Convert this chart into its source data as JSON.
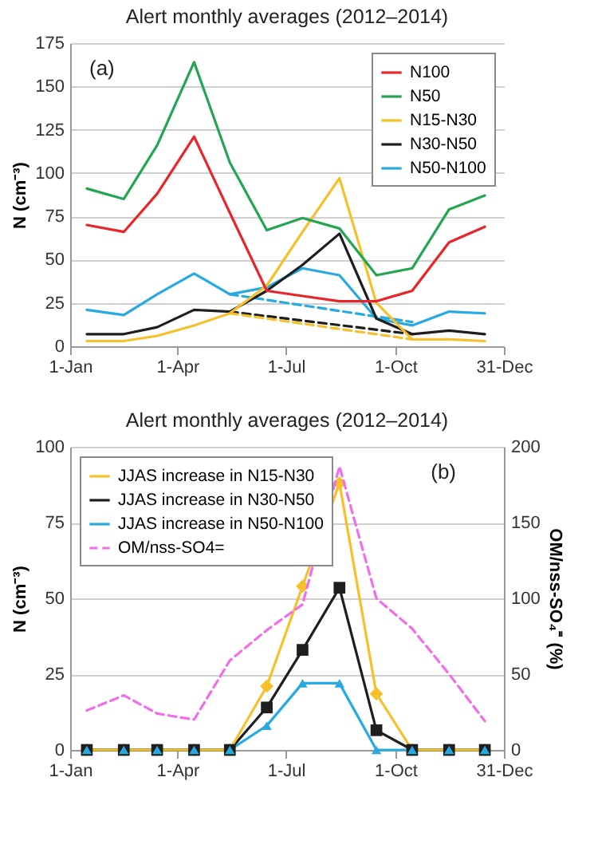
{
  "chart_data": [
    {
      "type": "line",
      "title": "Alert monthly averages (2012–2014)",
      "ylabel": "N (cm⁻³)",
      "annotations": [
        "(a)"
      ],
      "x": [
        "--01-15",
        "--02-15",
        "--03-15",
        "--04-15",
        "--05-15",
        "--06-15",
        "--07-15",
        "--08-15",
        "--09-15",
        "--10-15",
        "--11-15",
        "--12-15"
      ],
      "xlim": [
        "--01-01",
        "--12-31"
      ],
      "xticks": [
        {
          "value": "--01-01",
          "label": "1-Jan"
        },
        {
          "value": "--04-01",
          "label": "1-Apr"
        },
        {
          "value": "--07-01",
          "label": "1-Jul"
        },
        {
          "value": "--10-01",
          "label": "1-Oct"
        },
        {
          "value": "--12-31",
          "label": "31-Dec"
        }
      ],
      "ylim": [
        0,
        175
      ],
      "yticks": [
        0,
        25,
        50,
        75,
        100,
        125,
        150,
        175
      ],
      "grid": "y",
      "legend": "top right",
      "series": [
        {
          "name": "N100",
          "color": "#e8262a",
          "values": [
            70,
            66,
            88,
            121,
            77,
            32,
            29,
            26,
            26,
            32,
            60,
            69
          ]
        },
        {
          "name": "N50",
          "color": "#23a552",
          "values": [
            91,
            85,
            116,
            164,
            106,
            67,
            74,
            68,
            41,
            45,
            79,
            87
          ]
        },
        {
          "name": "N15-N30",
          "color": "#f5c02a",
          "values": [
            3,
            3,
            6,
            12,
            19,
            35,
            66,
            97,
            25,
            4,
            4,
            3
          ]
        },
        {
          "name": "N30-N50",
          "color": "#1e1e1e",
          "values": [
            7,
            7,
            11,
            21,
            20,
            32,
            47,
            65,
            16,
            7,
            9,
            7
          ]
        },
        {
          "name": "N50-N100",
          "color": "#27a9e1",
          "values": [
            21,
            18,
            30,
            42,
            30,
            34,
            45,
            41,
            16,
            12,
            20,
            19
          ]
        },
        {
          "color": "#f5c02a",
          "x": [
            "--05-15",
            "--10-15"
          ],
          "values": [
            19,
            4
          ],
          "line_style": "dashed"
        },
        {
          "color": "#1e1e1e",
          "x": [
            "--05-15",
            "--10-15"
          ],
          "values": [
            20,
            7
          ],
          "line_style": "dashed"
        },
        {
          "color": "#27a9e1",
          "x": [
            "--05-15",
            "--10-15"
          ],
          "values": [
            30,
            14
          ],
          "line_style": "dashed"
        }
      ]
    },
    {
      "type": "line",
      "title": "Alert monthly averages (2012–2014)",
      "ylabel": "N (cm⁻³)",
      "y2label": "OM/nss-SO₄⁼ (%)",
      "annotations": [
        "(b)"
      ],
      "x": [
        "--01-15",
        "--02-15",
        "--03-15",
        "--04-15",
        "--05-15",
        "--06-15",
        "--07-15",
        "--08-15",
        "--09-15",
        "--10-15",
        "--11-15",
        "--12-15"
      ],
      "xlim": [
        "--01-01",
        "--12-31"
      ],
      "xticks": [
        {
          "value": "--01-01",
          "label": "1-Jan"
        },
        {
          "value": "--04-01",
          "label": "1-Apr"
        },
        {
          "value": "--07-01",
          "label": "1-Jul"
        },
        {
          "value": "--10-01",
          "label": "1-Oct"
        },
        {
          "value": "--12-31",
          "label": "31-Dec"
        }
      ],
      "ylim": [
        0,
        100
      ],
      "yticks": [
        0,
        25,
        50,
        75,
        100
      ],
      "y2lim": [
        0,
        200
      ],
      "y2ticks": [
        0,
        50,
        100,
        150,
        200
      ],
      "grid": "y",
      "legend": "top left",
      "series": [
        {
          "name": "JJAS increase in N15-N30",
          "color": "#f5c02a",
          "marker": "diamond",
          "values": [
            0,
            0,
            0,
            0,
            0,
            21,
            54,
            88,
            18.5,
            0,
            0,
            0
          ]
        },
        {
          "name": "JJAS increase in N30-N50",
          "color": "#1e1e1e",
          "marker": "square",
          "values": [
            0,
            0,
            0,
            0,
            0,
            14,
            33,
            53.5,
            6.5,
            0,
            0,
            0
          ]
        },
        {
          "name": "JJAS increase in N50-N100",
          "color": "#27a9e1",
          "marker": "triangle",
          "values": [
            0,
            0,
            0,
            0,
            0,
            8,
            22,
            22,
            0,
            0,
            0,
            0
          ]
        },
        {
          "name": "OM/nss-SO4=",
          "color": "#f06ee8",
          "axis": "y2",
          "line_style": "dashed",
          "values": [
            26,
            36,
            24,
            20,
            59,
            79,
            96,
            187,
            100,
            80,
            50,
            19
          ]
        }
      ]
    }
  ]
}
